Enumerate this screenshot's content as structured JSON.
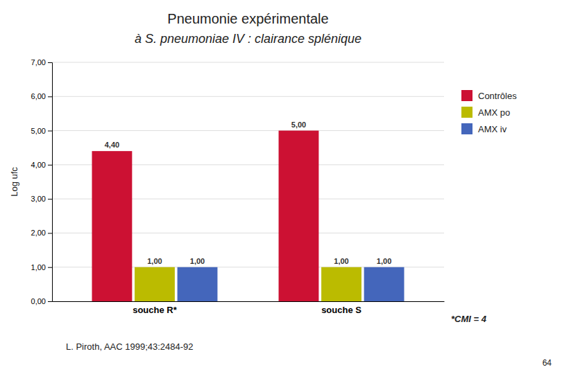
{
  "chart_data": {
    "type": "bar",
    "title": "Pneumonie expérimentale",
    "subtitle": "à S. pneumoniae IV : clairance splénique",
    "ylabel": "Log ufc",
    "categories": [
      "souche R*",
      "souche S"
    ],
    "series": [
      {
        "name": "Contrôles",
        "color": "#CC1133",
        "values": [
          4.4,
          5.0
        ],
        "value_labels": [
          "4,40",
          "5,00"
        ]
      },
      {
        "name": "AMX po",
        "color": "#BBBB00",
        "values": [
          1.0,
          1.0
        ],
        "value_labels": [
          "1,00",
          "1,00"
        ]
      },
      {
        "name": "AMX iv",
        "color": "#4466BB",
        "values": [
          1.0,
          1.0
        ],
        "value_labels": [
          "1,00",
          "1,00"
        ]
      }
    ],
    "ylim": [
      0,
      7
    ],
    "yticks": [
      {
        "value": 0,
        "label": "0,00"
      },
      {
        "value": 1,
        "label": "1,00"
      },
      {
        "value": 2,
        "label": "2,00"
      },
      {
        "value": 3,
        "label": "3,00"
      },
      {
        "value": 4,
        "label": "4,00"
      },
      {
        "value": 5,
        "label": "5,00"
      },
      {
        "value": 6,
        "label": "6,00"
      },
      {
        "value": 7,
        "label": "7,00"
      }
    ],
    "grid": true,
    "legend": "right",
    "data_labels": true,
    "annotations": [
      "*CMI = 4",
      "L. Piroth, AAC 1999;43:2484-92",
      "64"
    ]
  }
}
